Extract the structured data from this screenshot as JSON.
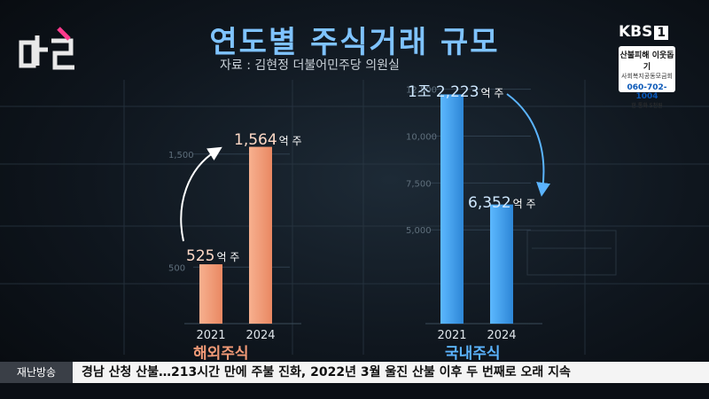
{
  "header": {
    "title": "연도별 주식거래 규모",
    "source": "자료 : 김현정 더불어민주당 의원실"
  },
  "broadcaster": {
    "name": "KBS",
    "channel": "1",
    "hotline_title": "산불피해 이웃돕기",
    "hotline_sub": "사회복지공동모금회",
    "hotline_number": "060-702-1004",
    "hotline_note": "한 통화 5천원"
  },
  "colors": {
    "overseas": "#f29a77",
    "domestic": "#48a6ee",
    "title": "#7fc3ff"
  },
  "chart_data": [
    {
      "type": "bar",
      "group_label": "해외주식",
      "categories": [
        "2021",
        "2024"
      ],
      "values": [
        525,
        1564
      ],
      "value_labels": [
        {
          "num": "525",
          "unit": "억 주"
        },
        {
          "num": "1,564",
          "unit": "억 주"
        }
      ],
      "ylim": [
        0,
        2000
      ],
      "ticks": [
        500,
        1500
      ],
      "tick_labels": [
        "500",
        "1,500"
      ],
      "arrow": "increase"
    },
    {
      "type": "bar",
      "group_label": "국내주식",
      "categories": [
        "2021",
        "2024"
      ],
      "values": [
        12223,
        6352
      ],
      "value_labels": [
        {
          "num": "1조 2,223",
          "unit": "억 주"
        },
        {
          "num": "6,352",
          "unit": "억 주"
        }
      ],
      "ylim": [
        0,
        13000
      ],
      "ticks": [
        5000,
        7500,
        10000,
        12500
      ],
      "tick_labels": [
        "5,000",
        "7,500",
        "10,000",
        "12,500"
      ],
      "arrow": "decrease"
    }
  ],
  "ticker": {
    "tag": "재난방송",
    "message": "경남 산청 산불…213시간 만에 주불 진화, 2022년 3월 울진 산불 이후 두 번째로 오래 지속"
  }
}
